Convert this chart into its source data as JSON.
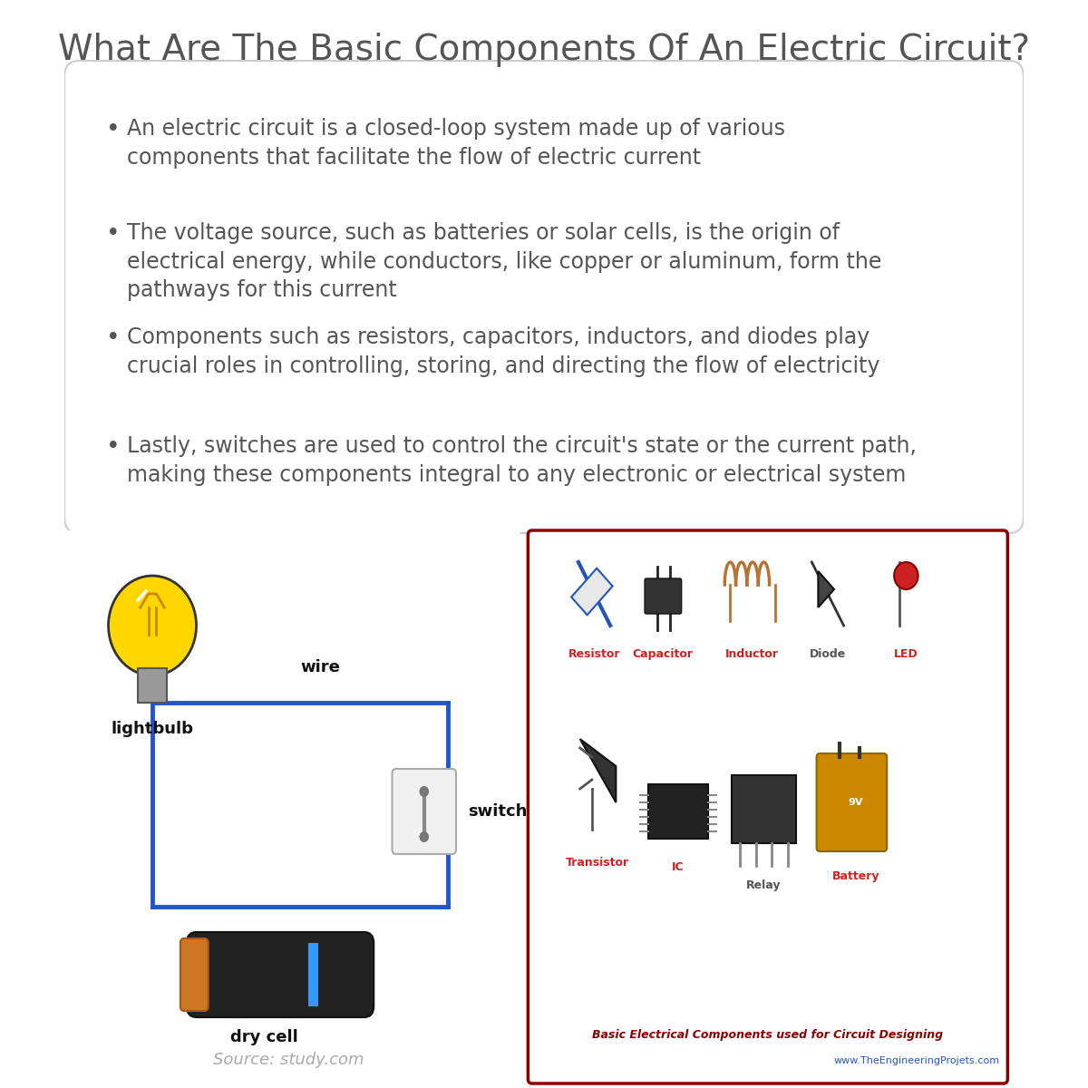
{
  "title": "What Are The Basic Components Of An Electric Circuit?",
  "title_color": "#555555",
  "title_fontsize": 28,
  "background_color": "#ffffff",
  "bullet_points": [
    "An electric circuit is a closed-loop system made up of various\ncomponents that facilitate the flow of electric current",
    "The voltage source, such as batteries or solar cells, is the origin of\nelectrical energy, while conductors, like copper or aluminum, form the\npathways for this current",
    "Components such as resistors, capacitors, inductors, and diodes play\ncrucial roles in controlling, storing, and directing the flow of electricity",
    "Lastly, switches are used to control the circuit's state or the current path,\nmaking these components integral to any electronic or electrical system"
  ],
  "bullet_color": "#555555",
  "bullet_fontsize": 17,
  "box_bg": "#ffffff",
  "box_edge": "#dddddd",
  "circuit_labels": {
    "wire": "wire",
    "lightbulb": "lightbulb",
    "switch": "switch",
    "dry_cell": "dry cell"
  },
  "circuit_wire_color": "#2255cc",
  "circuit_label_color": "#111111",
  "source_text": "Source: study.com",
  "source_color": "#aaaaaa",
  "right_panel_border": "#8b0000",
  "right_panel_bg": "#ffffff",
  "component_labels": [
    "Resistor",
    "Capacitor",
    "Inductor",
    "Diode",
    "LED"
  ],
  "component_labels2": [
    "Transistor",
    "IC",
    "Relay",
    "Battery"
  ],
  "bottom_text": "Basic Electrical Components used for Circuit Designing",
  "bottom_text_color": "#8b0000",
  "website_text": "www.TheEngineeringProjets.com",
  "website_color": "#2255cc"
}
